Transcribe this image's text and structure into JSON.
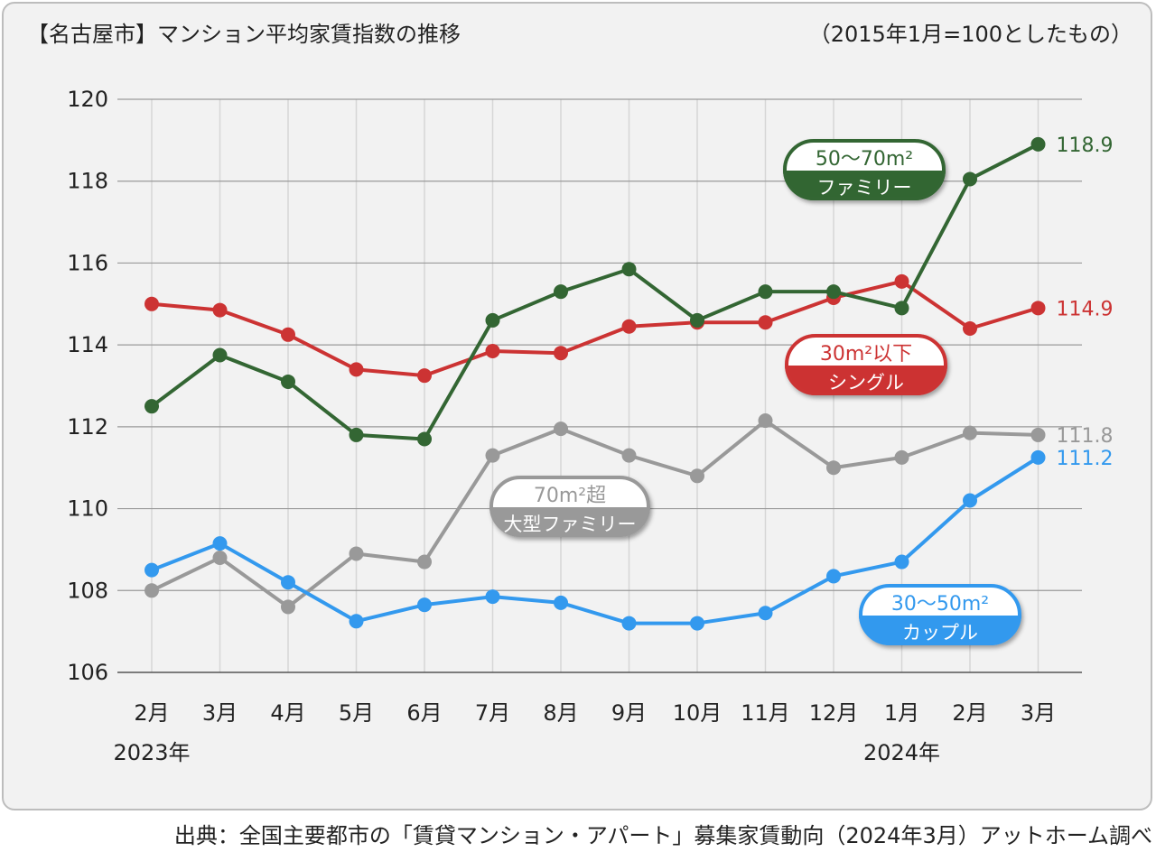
{
  "header": {
    "title": "【名古屋市】マンション平均家賃指数の推移",
    "note": "（2015年1月=100としたもの）"
  },
  "footer": {
    "source": "出典：全国主要都市の「賃貸マンション・アパート」募集家賃動向（2024年3月）アットホーム調べ"
  },
  "chart_data": {
    "type": "line",
    "title": "【名古屋市】マンション平均家賃指数の推移",
    "subtitle": "（2015年1月=100としたもの）",
    "ylim": [
      106,
      120
    ],
    "yticks": [
      "120",
      "118",
      "116",
      "114",
      "112",
      "110",
      "108",
      "106"
    ],
    "grid": true,
    "categories": [
      "2月",
      "3月",
      "4月",
      "5月",
      "6月",
      "7月",
      "8月",
      "9月",
      "10月",
      "11月",
      "12月",
      "1月",
      "2月",
      "3月"
    ],
    "year_labels": [
      "2023年",
      "2024年"
    ],
    "series": [
      {
        "key": "family",
        "name_line1": "50〜70m²",
        "name_line2": "ファミリー",
        "color": "#336633",
        "values": [
          112.5,
          113.75,
          113.1,
          111.8,
          111.7,
          114.6,
          115.3,
          115.85,
          114.6,
          115.3,
          115.3,
          114.9,
          118.05,
          118.9
        ],
        "end_label": "118.9"
      },
      {
        "key": "single",
        "name_line1": "30m²以下",
        "name_line2": "シングル",
        "color": "#cc3333",
        "values": [
          115.0,
          114.85,
          114.25,
          113.4,
          113.25,
          113.85,
          113.8,
          114.45,
          114.55,
          114.55,
          115.15,
          115.55,
          114.4,
          114.9
        ],
        "end_label": "114.9"
      },
      {
        "key": "large",
        "name_line1": "70m²超",
        "name_line2": "大型ファミリー",
        "color": "#999999",
        "values": [
          108.0,
          108.8,
          107.6,
          108.9,
          108.7,
          111.3,
          111.95,
          111.3,
          110.8,
          112.15,
          111.0,
          111.25,
          111.85,
          111.8
        ],
        "end_label": "111.8"
      },
      {
        "key": "couple",
        "name_line1": "30〜50m²",
        "name_line2": "カップル",
        "color": "#3399ee",
        "values": [
          108.5,
          109.15,
          108.2,
          107.25,
          107.65,
          107.85,
          107.7,
          107.2,
          107.2,
          107.45,
          108.35,
          108.7,
          110.2,
          111.25
        ],
        "end_label": "111.2"
      }
    ]
  }
}
